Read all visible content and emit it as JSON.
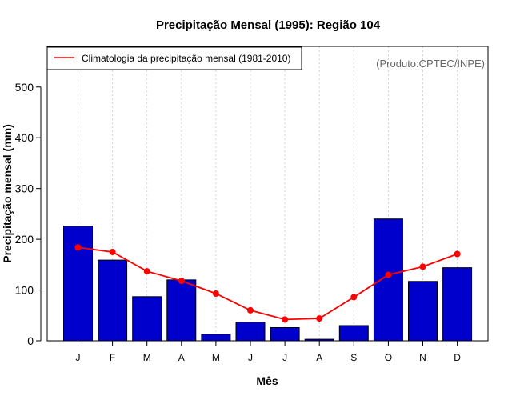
{
  "chart_data": {
    "type": "bar",
    "title": "Precipitação Mensal (1995): Região 104",
    "xlabel": "Mês",
    "ylabel": "Precipitação mensal (mm)",
    "categories": [
      "J",
      "F",
      "M",
      "A",
      "M",
      "J",
      "J",
      "A",
      "S",
      "O",
      "N",
      "D"
    ],
    "yticks": [
      0,
      100,
      200,
      300,
      400,
      500
    ],
    "ylim": [
      0,
      580
    ],
    "grid": "vertical dotted",
    "series": [
      {
        "name": "Precipitação mensal (1995)",
        "type": "bar",
        "color": "#0000cc",
        "values": [
          226,
          159,
          87,
          120,
          13,
          37,
          26,
          3,
          30,
          240,
          117,
          144
        ]
      },
      {
        "name": "Climatologia da precipitação mensal (1981-2010)",
        "type": "line",
        "color": "#ff0000",
        "values": [
          184,
          175,
          137,
          118,
          93,
          60,
          42,
          44,
          86,
          130,
          146,
          171
        ]
      }
    ],
    "legend": {
      "position": "top-left",
      "entries": [
        "Climatologia da precipitação mensal (1981-2010)"
      ]
    },
    "source_note": "(Produto:CPTEC/INPE)"
  }
}
